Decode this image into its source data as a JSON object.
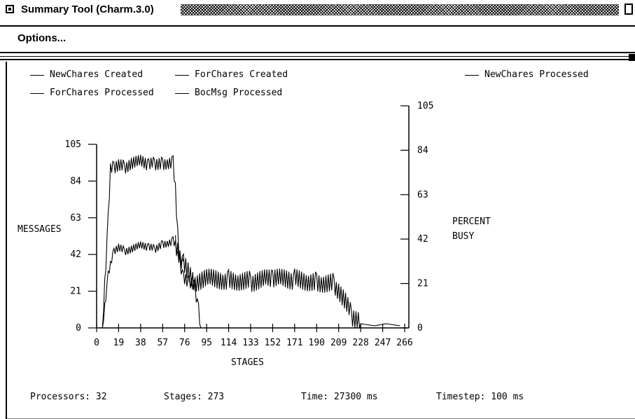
{
  "window": {
    "title": "Summary Tool (Charm.3.0)"
  },
  "menu": {
    "options_label": "Options..."
  },
  "chart_data": {
    "type": "line",
    "xlabel": "STAGES",
    "ylabel_left": "MESSAGES",
    "ylabel_right_line1": "PERCENT",
    "ylabel_right_line2": "BUSY",
    "left_ticks": [
      "105",
      "84",
      "63",
      "42",
      "21",
      "0"
    ],
    "right_ticks": [
      "105",
      "84",
      "63",
      "42",
      "21",
      "0"
    ],
    "x_ticks": [
      "0",
      "19",
      "38",
      "57",
      "76",
      "95",
      "114",
      "133",
      "152",
      "171",
      "190",
      "209",
      "228",
      "247",
      "266"
    ],
    "xlim": [
      0,
      266
    ],
    "ylim_left": [
      0,
      105
    ],
    "ylim_right": [
      0,
      105
    ],
    "legend": [
      "NewChares Created",
      "ForChares Created",
      "NewChares Processed",
      "ForChares Processed",
      "BocMsg Processed"
    ],
    "series": [
      {
        "name": "NewChares Created",
        "axis": "left",
        "style": "solid",
        "x": [
          5,
          10,
          12,
          15,
          19,
          24,
          30,
          38,
          45,
          50,
          57,
          63,
          66,
          68,
          70,
          72,
          75,
          80,
          85,
          88,
          90
        ],
        "y": [
          0,
          62,
          90,
          92,
          93,
          92,
          94,
          95,
          93,
          94,
          94,
          95,
          95,
          80,
          55,
          38,
          28,
          26,
          23,
          10,
          0
        ]
      },
      {
        "name": "ForChares Created",
        "axis": "left",
        "style": "solid",
        "x": [
          5,
          10,
          15,
          19,
          24,
          30,
          38,
          45,
          50,
          57,
          63,
          66,
          68,
          70,
          75
        ],
        "y": [
          0,
          30,
          44,
          46,
          44,
          45,
          47,
          46,
          45,
          48,
          49,
          50,
          48,
          42,
          38
        ]
      },
      {
        "name": "BocMsg Processed",
        "axis": "right",
        "style": "solid",
        "x": [
          68,
          75,
          85,
          95,
          114,
          133,
          152,
          171,
          190,
          205,
          209,
          215,
          220,
          228,
          240,
          250,
          262
        ],
        "y": [
          40,
          30,
          22,
          23,
          23,
          22,
          23,
          23,
          22,
          21,
          18,
          12,
          6,
          2,
          1,
          2,
          1
        ]
      }
    ]
  },
  "stats": {
    "processors": "Processors: 32",
    "stages": "Stages: 273",
    "time": "Time: 27300 ms",
    "timestep": "Timestep: 100 ms"
  }
}
